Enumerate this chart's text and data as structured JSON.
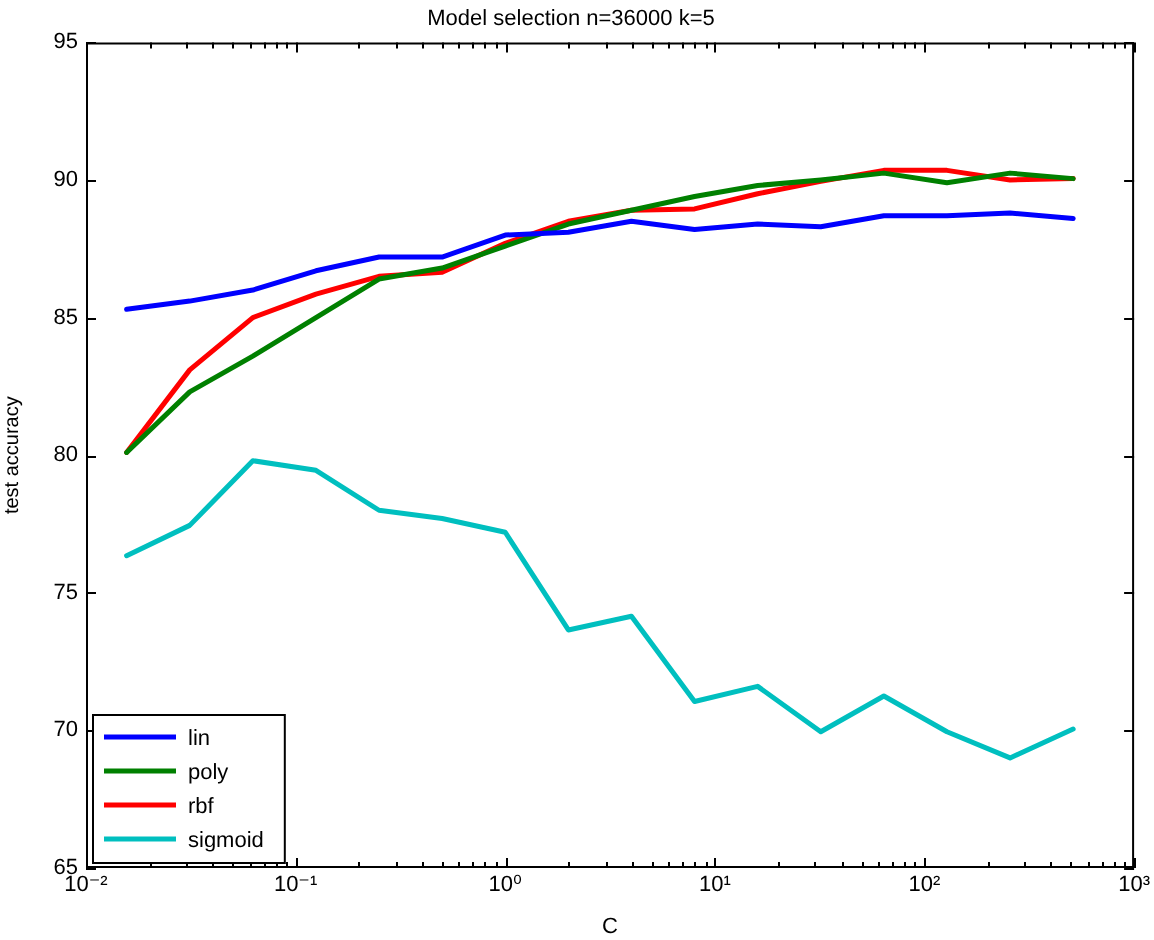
{
  "chart_data": {
    "type": "line",
    "title": "Model selection n=36000 k=5",
    "xlabel": "C",
    "ylabel": "test accuracy",
    "log": "x",
    "x": [
      0.015625,
      0.03125,
      0.0625,
      0.125,
      0.25,
      0.5,
      1,
      2,
      4,
      8,
      16,
      32,
      64,
      128,
      256,
      512
    ],
    "xlim": [
      0.01,
      1000
    ],
    "xticks": [
      {
        "value": 0.01,
        "label": "10⁻²"
      },
      {
        "value": 0.02,
        "label": null
      },
      {
        "value": 0.03,
        "label": null
      },
      {
        "value": 0.04,
        "label": null
      },
      {
        "value": 0.05,
        "label": null
      },
      {
        "value": 0.06,
        "label": null
      },
      {
        "value": 0.07,
        "label": null
      },
      {
        "value": 0.08,
        "label": null
      },
      {
        "value": 0.09,
        "label": null
      },
      {
        "value": 0.1,
        "label": "10⁻¹"
      },
      {
        "value": 0.2,
        "label": null
      },
      {
        "value": 0.3,
        "label": null
      },
      {
        "value": 0.4,
        "label": null
      },
      {
        "value": 0.5,
        "label": null
      },
      {
        "value": 0.6,
        "label": null
      },
      {
        "value": 0.7,
        "label": null
      },
      {
        "value": 0.8,
        "label": null
      },
      {
        "value": 0.9,
        "label": null
      },
      {
        "value": 1,
        "label": "10⁰"
      },
      {
        "value": 2,
        "label": null
      },
      {
        "value": 3,
        "label": null
      },
      {
        "value": 4,
        "label": null
      },
      {
        "value": 5,
        "label": null
      },
      {
        "value": 6,
        "label": null
      },
      {
        "value": 7,
        "label": null
      },
      {
        "value": 8,
        "label": null
      },
      {
        "value": 9,
        "label": null
      },
      {
        "value": 10,
        "label": "10¹"
      },
      {
        "value": 20,
        "label": null
      },
      {
        "value": 30,
        "label": null
      },
      {
        "value": 40,
        "label": null
      },
      {
        "value": 50,
        "label": null
      },
      {
        "value": 60,
        "label": null
      },
      {
        "value": 70,
        "label": null
      },
      {
        "value": 80,
        "label": null
      },
      {
        "value": 90,
        "label": null
      },
      {
        "value": 100,
        "label": "10²"
      },
      {
        "value": 200,
        "label": null
      },
      {
        "value": 300,
        "label": null
      },
      {
        "value": 400,
        "label": null
      },
      {
        "value": 500,
        "label": null
      },
      {
        "value": 600,
        "label": null
      },
      {
        "value": 700,
        "label": null
      },
      {
        "value": 800,
        "label": null
      },
      {
        "value": 900,
        "label": null
      },
      {
        "value": 1000,
        "label": "10³"
      }
    ],
    "ylim": [
      65,
      95
    ],
    "yticks": [
      65,
      70,
      75,
      80,
      85,
      90,
      95
    ],
    "grid": false,
    "legend": "bottom left",
    "marker": "none",
    "line_style": "solid",
    "series": [
      {
        "name": "lin",
        "color": "#0000ff",
        "values": [
          85.3,
          85.6,
          86.0,
          86.7,
          87.2,
          87.2,
          88.0,
          88.1,
          88.5,
          88.2,
          88.4,
          88.3,
          88.7,
          88.7,
          88.8,
          88.6
        ]
      },
      {
        "name": "poly",
        "color": "#008000",
        "values": [
          80.1,
          82.3,
          83.6,
          85.0,
          86.4,
          86.8,
          87.6,
          88.4,
          88.9,
          89.4,
          89.8,
          90.0,
          90.25,
          89.9,
          90.25,
          90.05
        ]
      },
      {
        "name": "rbf",
        "color": "#ff0000",
        "values": [
          80.1,
          83.1,
          85.0,
          85.85,
          86.5,
          86.65,
          87.7,
          88.5,
          88.9,
          88.95,
          89.5,
          89.95,
          90.35,
          90.35,
          90.0,
          90.05
        ]
      },
      {
        "name": "sigmoid",
        "color": "#00bfbf",
        "values": [
          76.35,
          77.45,
          79.8,
          79.45,
          78.0,
          77.7,
          77.2,
          73.65,
          74.15,
          71.05,
          71.6,
          69.95,
          71.25,
          69.95,
          69.0,
          70.05
        ]
      }
    ]
  }
}
